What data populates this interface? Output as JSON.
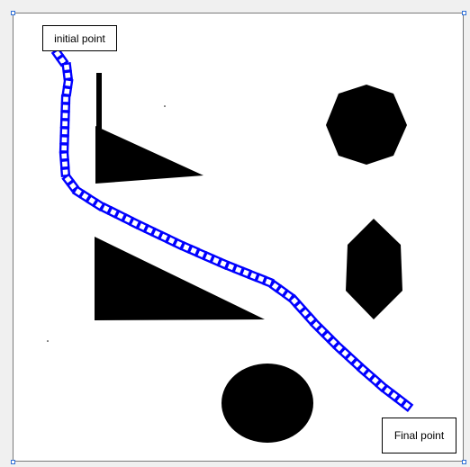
{
  "labels": {
    "initial": "initial point",
    "final": "Final point"
  },
  "colors": {
    "path": "#0000ff",
    "obstacle": "#000000",
    "background": "#ffffff",
    "handle": "#2f6fd6"
  },
  "icons": {
    "handle": "resize-handle-icon"
  }
}
